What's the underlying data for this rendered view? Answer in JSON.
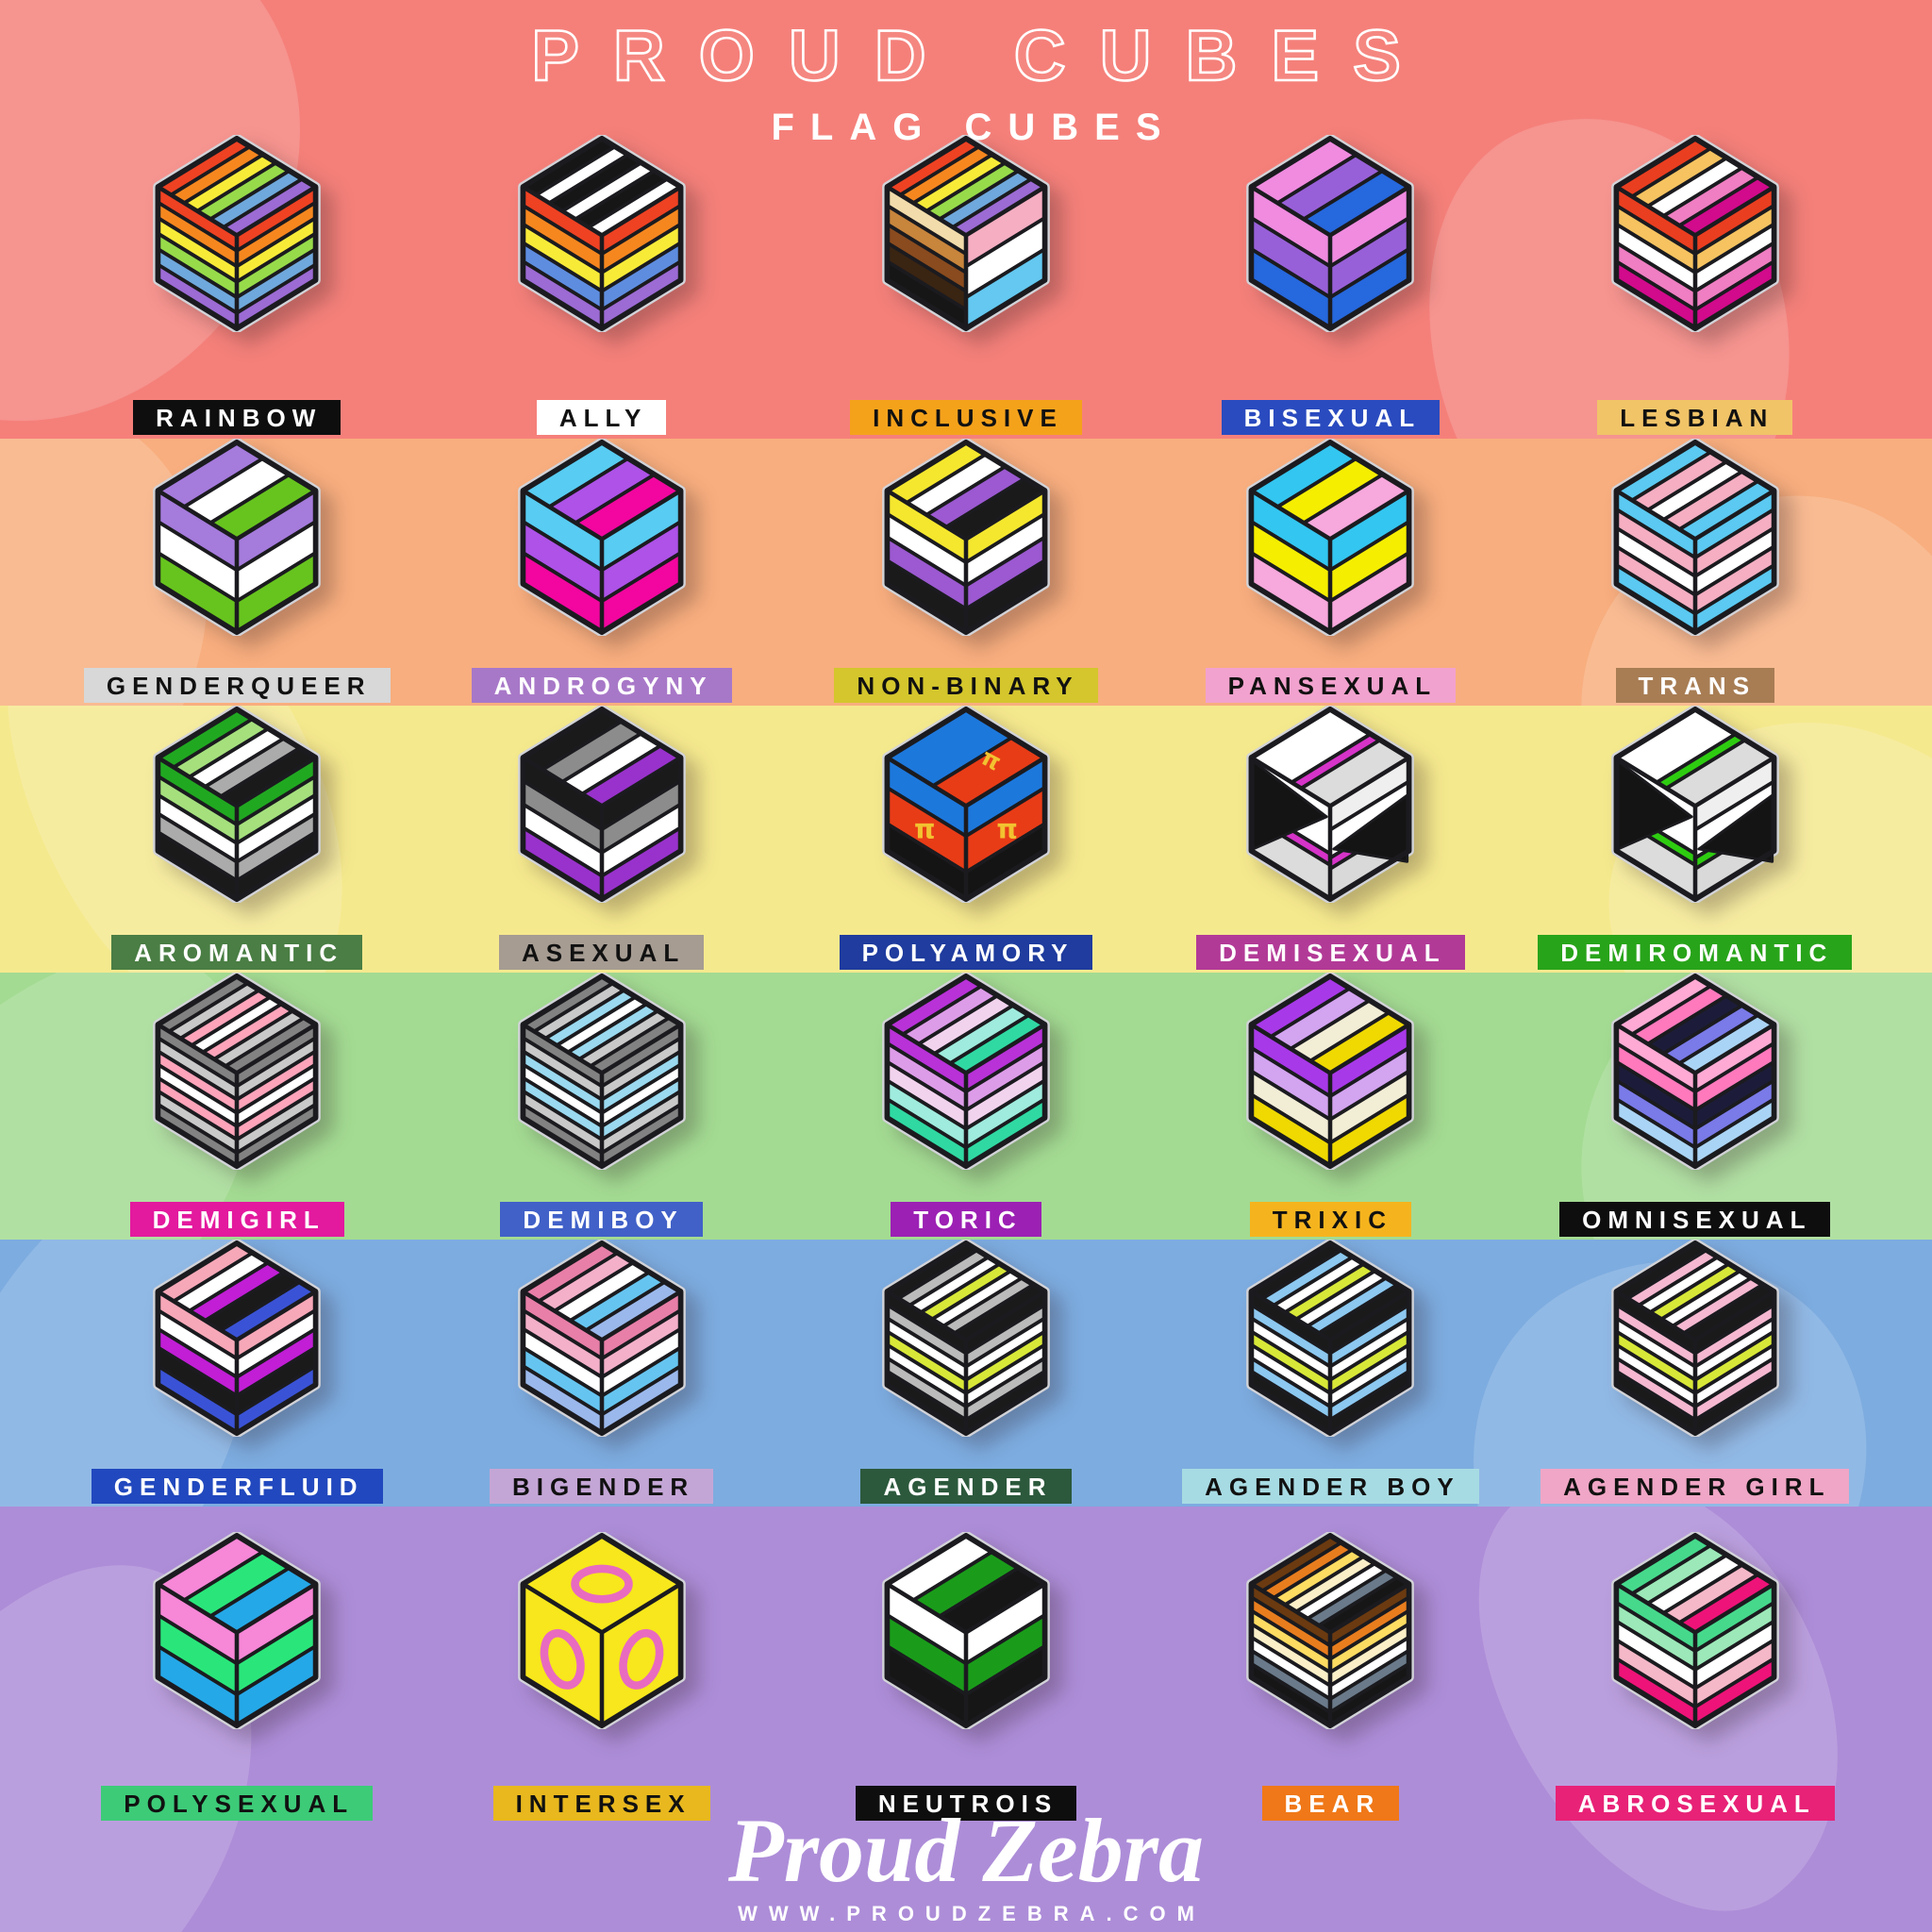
{
  "header": {
    "title": "PROUD CUBES",
    "subtitle": "FLAG CUBES"
  },
  "footer": {
    "brand": "Proud Zebra",
    "website": "WWW.PROUDZEBRA.COM"
  },
  "palette": {
    "pin_rim_metal": "#D2D3D8",
    "pin_line_black": "#1B1B1F",
    "pi_symbol_color": "#F2C230",
    "ring_symbol_color": "#E86BC0",
    "triangle_color": "#141414"
  },
  "rows": [
    {
      "band_color": "#F5807A",
      "cubes": [
        {
          "id": "rainbow",
          "label": "RAINBOW",
          "label_bg": "#0E0E0E",
          "label_fg": "#FFFFFF",
          "faces": {
            "all": [
              "#EE4223",
              "#F6871F",
              "#F8EB38",
              "#97DB4A",
              "#6FA8DC",
              "#9C6BD4"
            ]
          }
        },
        {
          "id": "ally",
          "label": "ALLY",
          "label_bg": "#FFFFFF",
          "label_fg": "#111111",
          "faces": {
            "top": [
              "#161616",
              "#FFFFFF",
              "#161616",
              "#FFFFFF",
              "#161616",
              "#FFFFFF"
            ],
            "left": [
              "#EE4223",
              "#F6871F",
              "#F8EB38",
              "#5E8DE0",
              "#9C6BD4"
            ],
            "right": [
              "#EE4223",
              "#F6871F",
              "#F8EB38",
              "#5E8DE0",
              "#9C6BD4"
            ]
          }
        },
        {
          "id": "inclusive",
          "label": "INCLUSIVE",
          "label_bg": "#F5A21B",
          "label_fg": "#111111",
          "faces": {
            "top": [
              "#EE4223",
              "#F6871F",
              "#F8EB38",
              "#97DB4A",
              "#6FA8DC",
              "#9C6BD4"
            ],
            "left": [
              "#F2DCAB",
              "#C8853C",
              "#8A4B1E",
              "#3A2412",
              "#161616"
            ],
            "right": [
              "#F5AEC2",
              "#FFFFFF",
              "#64C8F0"
            ]
          }
        },
        {
          "id": "bisexual",
          "label": "BISEXUAL",
          "label_bg": "#2A4BBF",
          "label_fg": "#FFFFFF",
          "faces": {
            "all": [
              "#F08BE0",
              "#9860D8",
              "#2668DD"
            ]
          }
        },
        {
          "id": "lesbian",
          "label": "LESBIAN",
          "label_bg": "#F1C468",
          "label_fg": "#111111",
          "faces": {
            "all": [
              "#EA3E20",
              "#F6C360",
              "#FFFFFF",
              "#EF7EC2",
              "#D20A8C"
            ]
          }
        }
      ]
    },
    {
      "band_color": "#F8AE7E",
      "cubes": [
        {
          "id": "genderqueer",
          "label": "GENDERQUEER",
          "label_bg": "#D8D8D8",
          "label_fg": "#111111",
          "faces": {
            "all": [
              "#A57BDC",
              "#FFFFFF",
              "#67C41E"
            ]
          }
        },
        {
          "id": "androgyny",
          "label": "ANDROGYNY",
          "label_bg": "#A878C8",
          "label_fg": "#FFFFFF",
          "faces": {
            "all": [
              "#58CCF2",
              "#AE52E8",
              "#F2069F"
            ]
          }
        },
        {
          "id": "non-binary",
          "label": "NON-BINARY",
          "label_bg": "#D4C62C",
          "label_fg": "#111111",
          "faces": {
            "all": [
              "#F5E72E",
              "#FFFFFF",
              "#9C59D1",
              "#1A1A1A"
            ]
          }
        },
        {
          "id": "pansexual",
          "label": "PANSEXUAL",
          "label_bg": "#F2A2CE",
          "label_fg": "#111111",
          "faces": {
            "all": [
              "#33C6F0",
              "#F5EE00",
              "#F7A8DC"
            ]
          }
        },
        {
          "id": "trans",
          "label": "TRANS",
          "label_bg": "#A87D54",
          "label_fg": "#FFFFFF",
          "faces": {
            "all": [
              "#5BC9F1",
              "#F5AEC2",
              "#FFFFFF",
              "#F5AEC2",
              "#5BC9F1"
            ]
          }
        }
      ]
    },
    {
      "band_color": "#F5E98E",
      "cubes": [
        {
          "id": "aromantic",
          "label": "AROMANTIC",
          "label_bg": "#4A7E44",
          "label_fg": "#FFFFFF",
          "faces": {
            "all": [
              "#21A821",
              "#A5E07D",
              "#FFFFFF",
              "#ABABAB",
              "#1A1A1A"
            ]
          }
        },
        {
          "id": "asexual",
          "label": "ASEXUAL",
          "label_bg": "#A69C92",
          "label_fg": "#111111",
          "faces": {
            "all": [
              "#1A1A1A",
              "#8C8C8C",
              "#FFFFFF",
              "#9932CC"
            ]
          }
        },
        {
          "id": "polyamory",
          "label": "POLYAMORY",
          "label_bg": "#1F3C9E",
          "label_fg": "#FFFFFF",
          "overlay": {
            "type": "pi",
            "color": "#F2C230"
          },
          "faces": {
            "top": [
              [
                "#1D78DC",
                1.4
              ],
              [
                "#E83C17",
                1
              ]
            ],
            "left": [
              [
                "#1D78DC",
                1
              ],
              [
                "#E83C17",
                1.2
              ],
              [
                "#141414",
                0.9
              ]
            ],
            "right": [
              [
                "#1D78DC",
                1
              ],
              [
                "#E83C17",
                1.2
              ],
              [
                "#141414",
                0.9
              ]
            ]
          }
        },
        {
          "id": "demisexual",
          "label": "DEMISEXUAL",
          "label_bg": "#B23A97",
          "label_fg": "#FFFFFF",
          "overlay": {
            "type": "triangles",
            "color": "#141414"
          },
          "faces": {
            "top": [
              [
                "#FFFFFF",
                2.1
              ],
              [
                "#D633C8",
                0.5
              ],
              [
                "#DCDCDC",
                1.5
              ]
            ],
            "left": [
              [
                "#FFFFFF",
                2.1
              ],
              [
                "#D633C8",
                0.5
              ],
              [
                "#DCDCDC",
                1.5
              ]
            ],
            "right": [
              [
                "#EFEFEF",
                1.1
              ],
              [
                "#FFFFFF",
                1.3
              ],
              [
                "#D633C8",
                0.5
              ],
              [
                "#D9D9D9",
                1.4
              ]
            ]
          }
        },
        {
          "id": "demiromantic",
          "label": "DEMIROMANTIC",
          "label_bg": "#28A41A",
          "label_fg": "#FFFFFF",
          "overlay": {
            "type": "triangles",
            "color": "#141414"
          },
          "faces": {
            "top": [
              [
                "#FFFFFF",
                2.1
              ],
              [
                "#2ECC11",
                0.5
              ],
              [
                "#DCDCDC",
                1.5
              ]
            ],
            "left": [
              [
                "#FFFFFF",
                2.1
              ],
              [
                "#2ECC11",
                0.5
              ],
              [
                "#DCDCDC",
                1.5
              ]
            ],
            "right": [
              [
                "#EFEFEF",
                1.1
              ],
              [
                "#FFFFFF",
                1.3
              ],
              [
                "#2ECC11",
                0.5
              ],
              [
                "#D9D9D9",
                1.4
              ]
            ]
          }
        }
      ]
    },
    {
      "band_color": "#A3DB92",
      "cubes": [
        {
          "id": "demigirl",
          "label": "DEMIGIRL",
          "label_bg": "#E3199E",
          "label_fg": "#FFFFFF",
          "faces": {
            "all": [
              "#828282",
              "#C9C9C9",
              "#FDA4BA",
              "#FFFFFF",
              "#FDA4BA",
              "#C9C9C9",
              "#828282"
            ]
          }
        },
        {
          "id": "demiboy",
          "label": "DEMIBOY",
          "label_bg": "#4161C8",
          "label_fg": "#FFFFFF",
          "faces": {
            "all": [
              "#828282",
              "#C9C9C9",
              "#9AD9EF",
              "#FFFFFF",
              "#9AD9EF",
              "#C9C9C9",
              "#828282"
            ]
          }
        },
        {
          "id": "toric",
          "label": "TORIC",
          "label_bg": "#9C20B4",
          "label_fg": "#FFFFFF",
          "faces": {
            "all": [
              "#B832D8",
              "#DD9CE8",
              "#F2D3EE",
              "#9FEBDD",
              "#30D9A2"
            ]
          }
        },
        {
          "id": "trixic",
          "label": "TRIXIC",
          "label_bg": "#F5B41E",
          "label_fg": "#111111",
          "faces": {
            "all": [
              "#A839E8",
              "#D3A4F0",
              "#F2EDD5",
              "#EFD900"
            ]
          }
        },
        {
          "id": "omnisexual",
          "label": "OMNISEXUAL",
          "label_bg": "#0E0E0E",
          "label_fg": "#FFFFFF",
          "faces": {
            "all": [
              "#FFAAD4",
              "#FF79BC",
              "#1C1C3A",
              "#7A7AE8",
              "#AAD4F5"
            ]
          }
        }
      ]
    },
    {
      "band_color": "#7DACE0",
      "cubes": [
        {
          "id": "genderfluid",
          "label": "GENDERFLUID",
          "label_bg": "#2148BE",
          "label_fg": "#FFFFFF",
          "faces": {
            "all": [
              "#F7A8B8",
              "#FFFFFF",
              "#C11ED6",
              "#1A1A1A",
              "#3A53D6"
            ]
          }
        },
        {
          "id": "bigender",
          "label": "BIGENDER",
          "label_bg": "#C4A6D6",
          "label_fg": "#111111",
          "faces": {
            "all": [
              "#E87FA8",
              "#F4B0C9",
              "#FFFFFF",
              "#66C5F0",
              "#9BB8EC"
            ]
          }
        },
        {
          "id": "agender",
          "label": "AGENDER",
          "label_bg": "#2C593C",
          "label_fg": "#FFFFFF",
          "faces": {
            "all": [
              "#1A1A1A",
              "#BBBBBB",
              "#FFFFFF",
              "#D8E838",
              "#FFFFFF",
              "#BBBBBB",
              "#1A1A1A"
            ]
          }
        },
        {
          "id": "agender-boy",
          "label": "AGENDER BOY",
          "label_bg": "#A7DBE3",
          "label_fg": "#111111",
          "faces": {
            "all": [
              "#1A1A1A",
              "#8CC8F0",
              "#FFFFFF",
              "#D8E838",
              "#FFFFFF",
              "#8CC8F0",
              "#1A1A1A"
            ]
          }
        },
        {
          "id": "agender-girl",
          "label": "AGENDER GIRL",
          "label_bg": "#F0A6C6",
          "label_fg": "#111111",
          "faces": {
            "all": [
              "#1A1A1A",
              "#F5B8D0",
              "#FFFFFF",
              "#D8E838",
              "#FFFFFF",
              "#F5B8D0",
              "#1A1A1A"
            ]
          }
        }
      ]
    },
    {
      "band_color": "#AD8DD8",
      "cubes": [
        {
          "id": "polysexual",
          "label": "POLYSEXUAL",
          "label_bg": "#3DCB78",
          "label_fg": "#111111",
          "faces": {
            "all": [
              "#F787D7",
              "#2AE67A",
              "#25A8E8"
            ]
          }
        },
        {
          "id": "intersex",
          "label": "INTERSEX",
          "label_bg": "#E8B81E",
          "label_fg": "#111111",
          "overlay": {
            "type": "rings",
            "color": "#E86BC0"
          },
          "faces": {
            "all": [
              "#F7E71C"
            ]
          }
        },
        {
          "id": "neutrois",
          "label": "NEUTROIS",
          "label_bg": "#0E0E0E",
          "label_fg": "#FFFFFF",
          "faces": {
            "all": [
              "#FFFFFF",
              "#1A9C1A",
              "#161616"
            ]
          }
        },
        {
          "id": "bear",
          "label": "BEAR",
          "label_bg": "#F07818",
          "label_fg": "#FFFFFF",
          "faces": {
            "all": [
              "#6B3A10",
              "#E87D1E",
              "#FDDC62",
              "#FBEFC7",
              "#FFFFFF",
              "#6A7A8A",
              "#161616"
            ]
          }
        },
        {
          "id": "abrosexual",
          "label": "ABROSEXUAL",
          "label_bg": "#E82277",
          "label_fg": "#FFFFFF",
          "faces": {
            "all": [
              "#46D98C",
              "#9CE8B8",
              "#FFFFFF",
              "#F5B8C8",
              "#EE1378"
            ]
          }
        }
      ]
    }
  ]
}
